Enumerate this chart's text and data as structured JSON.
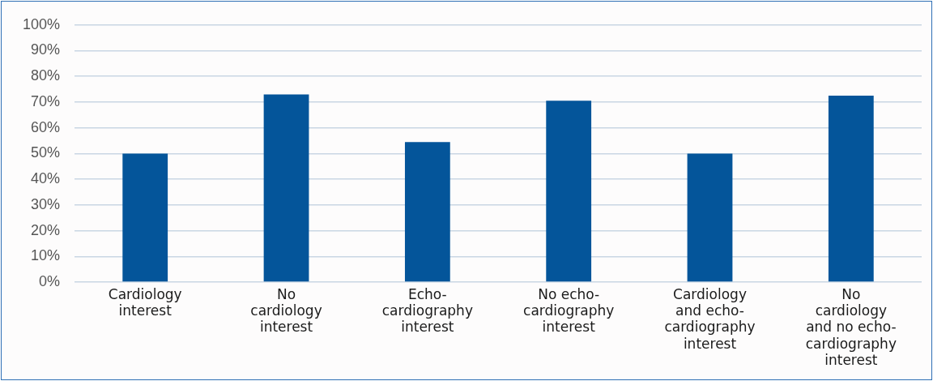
{
  "chart_data": {
    "type": "bar",
    "categories": [
      "Cardiology interest",
      "No cardiology interest",
      "Echo-cardiography interest",
      "No echo-cardiography interest",
      "Cardiology and echo-cardiography interest",
      "No cardiology and no echo-cardiography interest"
    ],
    "values": [
      50,
      73,
      54.5,
      70.5,
      50,
      72.5
    ],
    "color": "#04559a",
    "ylim": [
      0,
      100
    ],
    "yticks": [
      {
        "value": 0,
        "label": "0%"
      },
      {
        "value": 10,
        "label": "10%"
      },
      {
        "value": 20,
        "label": "20%"
      },
      {
        "value": 30,
        "label": "30%"
      },
      {
        "value": 40,
        "label": "40%"
      },
      {
        "value": 50,
        "label": "50%"
      },
      {
        "value": 60,
        "label": "60%"
      },
      {
        "value": 70,
        "label": "70%"
      },
      {
        "value": 80,
        "label": "80%"
      },
      {
        "value": 90,
        "label": "90%"
      },
      {
        "value": 100,
        "label": "100%"
      }
    ],
    "grid": "y"
  }
}
